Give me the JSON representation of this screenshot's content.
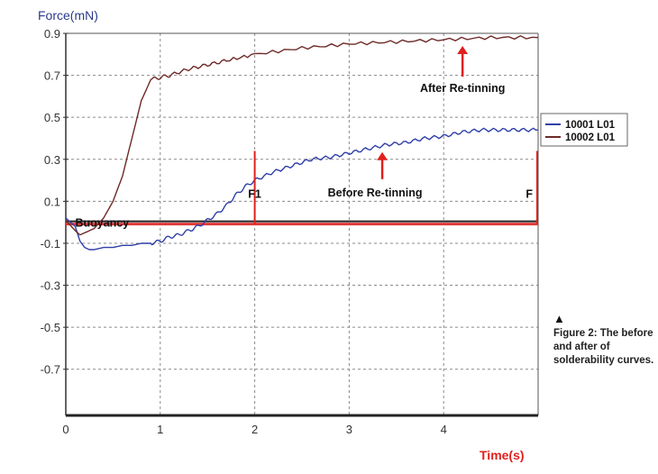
{
  "chart_data": {
    "type": "line",
    "title": "",
    "ylabel": "Force(mN)",
    "xlabel": "Time(s)",
    "xlim": [
      0,
      5
    ],
    "ylim": [
      -0.92,
      0.9
    ],
    "x_ticks": [
      0,
      1,
      2,
      3,
      4
    ],
    "y_ticks": [
      0.9,
      0.7,
      0.5,
      0.3,
      0.1,
      -0.1,
      -0.3,
      -0.5,
      -0.7
    ],
    "y_tick_labels": [
      "0.9",
      "0.7",
      "0.5",
      "0.3",
      "0.1",
      "-0.1",
      "-0.3",
      "-0.5",
      "-0.7"
    ],
    "grid": true,
    "legend_position": "right",
    "series": [
      {
        "name": "10001 L01",
        "color": "#2f3fa8",
        "x": [
          0,
          0.1,
          0.15,
          0.2,
          0.25,
          0.3,
          0.4,
          0.5,
          0.6,
          0.7,
          0.8,
          0.9,
          1.0,
          1.1,
          1.2,
          1.3,
          1.4,
          1.5,
          1.6,
          1.7,
          1.8,
          1.9,
          2.0,
          2.2,
          2.4,
          2.6,
          2.8,
          3.0,
          3.2,
          3.4,
          3.6,
          3.8,
          4.0,
          4.2,
          4.4,
          4.6,
          4.8,
          5.0
        ],
        "y": [
          0.02,
          -0.02,
          -0.09,
          -0.12,
          -0.13,
          -0.13,
          -0.12,
          -0.12,
          -0.11,
          -0.11,
          -0.1,
          -0.1,
          -0.09,
          -0.07,
          -0.06,
          -0.04,
          -0.02,
          0.01,
          0.04,
          0.08,
          0.13,
          0.17,
          0.2,
          0.24,
          0.27,
          0.3,
          0.31,
          0.33,
          0.35,
          0.37,
          0.38,
          0.4,
          0.41,
          0.43,
          0.44,
          0.44,
          0.44,
          0.44
        ]
      },
      {
        "name": "10002 L01",
        "color": "#6e2a28",
        "x": [
          0,
          0.1,
          0.15,
          0.2,
          0.3,
          0.4,
          0.5,
          0.6,
          0.7,
          0.8,
          0.9,
          1.0,
          1.1,
          1.3,
          1.5,
          1.7,
          2.0,
          2.5,
          3.0,
          3.5,
          4.0,
          4.5,
          5.0
        ],
        "y": [
          0.01,
          -0.04,
          -0.06,
          -0.05,
          -0.03,
          0.02,
          0.1,
          0.22,
          0.4,
          0.58,
          0.68,
          0.69,
          0.7,
          0.73,
          0.75,
          0.77,
          0.8,
          0.83,
          0.85,
          0.86,
          0.87,
          0.88,
          0.88
        ]
      }
    ],
    "markers": [
      {
        "label": "F1",
        "x": 2.0
      },
      {
        "label": "F",
        "x": 5.0
      }
    ],
    "annotations": [
      {
        "text": "After Re-tinning",
        "x": 4.2,
        "y": 0.9
      },
      {
        "text": "Before Re-tinning",
        "x": 3.35,
        "y": 0.36
      },
      {
        "text": "Buoyancy",
        "x": 0.1,
        "y": 0.0
      }
    ]
  },
  "caption": {
    "symbol": "▲",
    "text": "Figure 2: The before and after of solderability curves."
  }
}
